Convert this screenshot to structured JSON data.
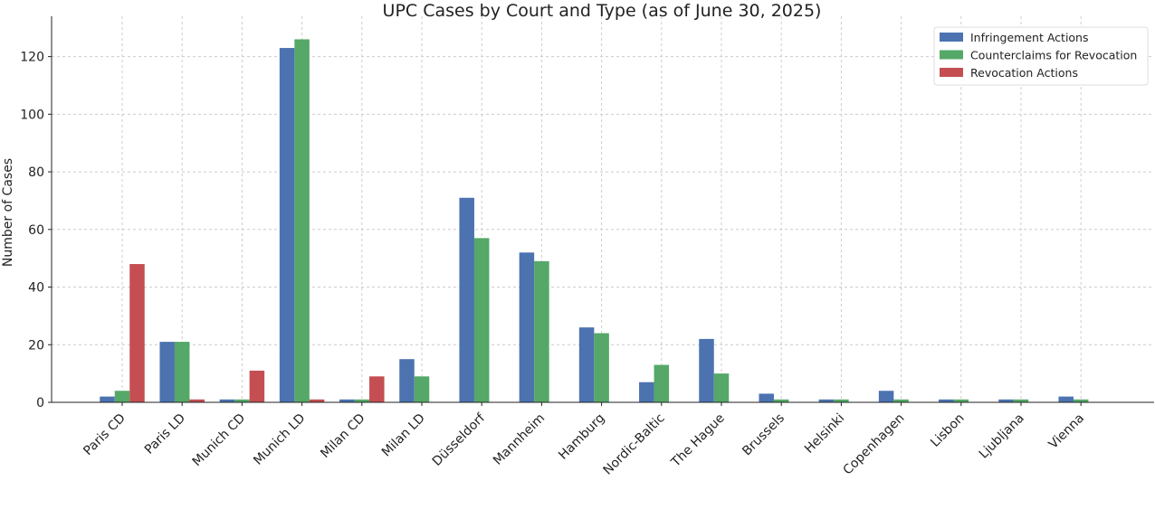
{
  "chart_data": {
    "type": "bar",
    "title": "UPC Cases by Court and Type (as of June 30, 2025)",
    "xlabel": "",
    "ylabel": "Number of Cases",
    "ylim": [
      0,
      134
    ],
    "yticks": [
      0,
      20,
      40,
      60,
      80,
      100,
      120
    ],
    "grid": true,
    "legend_position": "top-right",
    "categories": [
      "Paris CD",
      "Paris LD",
      "Munich CD",
      "Munich LD",
      "Milan CD",
      "Milan LD",
      "Düsseldorf",
      "Mannheim",
      "Hamburg",
      "Nordic-Baltic",
      "The Hague",
      "Brussels",
      "Helsinki",
      "Copenhagen",
      "Lisbon",
      "Ljubljana",
      "Vienna"
    ],
    "series": [
      {
        "name": "Infringement Actions",
        "color": "#4c72b0",
        "values": [
          2,
          21,
          1,
          123,
          1,
          15,
          71,
          52,
          26,
          7,
          22,
          3,
          1,
          4,
          1,
          1,
          2
        ]
      },
      {
        "name": "Counterclaims for Revocation",
        "color": "#55a868",
        "values": [
          4,
          21,
          1,
          126,
          1,
          9,
          57,
          49,
          24,
          13,
          10,
          1,
          1,
          1,
          1,
          1,
          1
        ]
      },
      {
        "name": "Revocation Actions",
        "color": "#c44e52",
        "values": [
          48,
          1,
          11,
          1,
          9,
          0,
          0,
          0,
          0,
          0,
          0,
          0,
          0,
          0,
          0,
          0,
          0
        ]
      }
    ]
  }
}
